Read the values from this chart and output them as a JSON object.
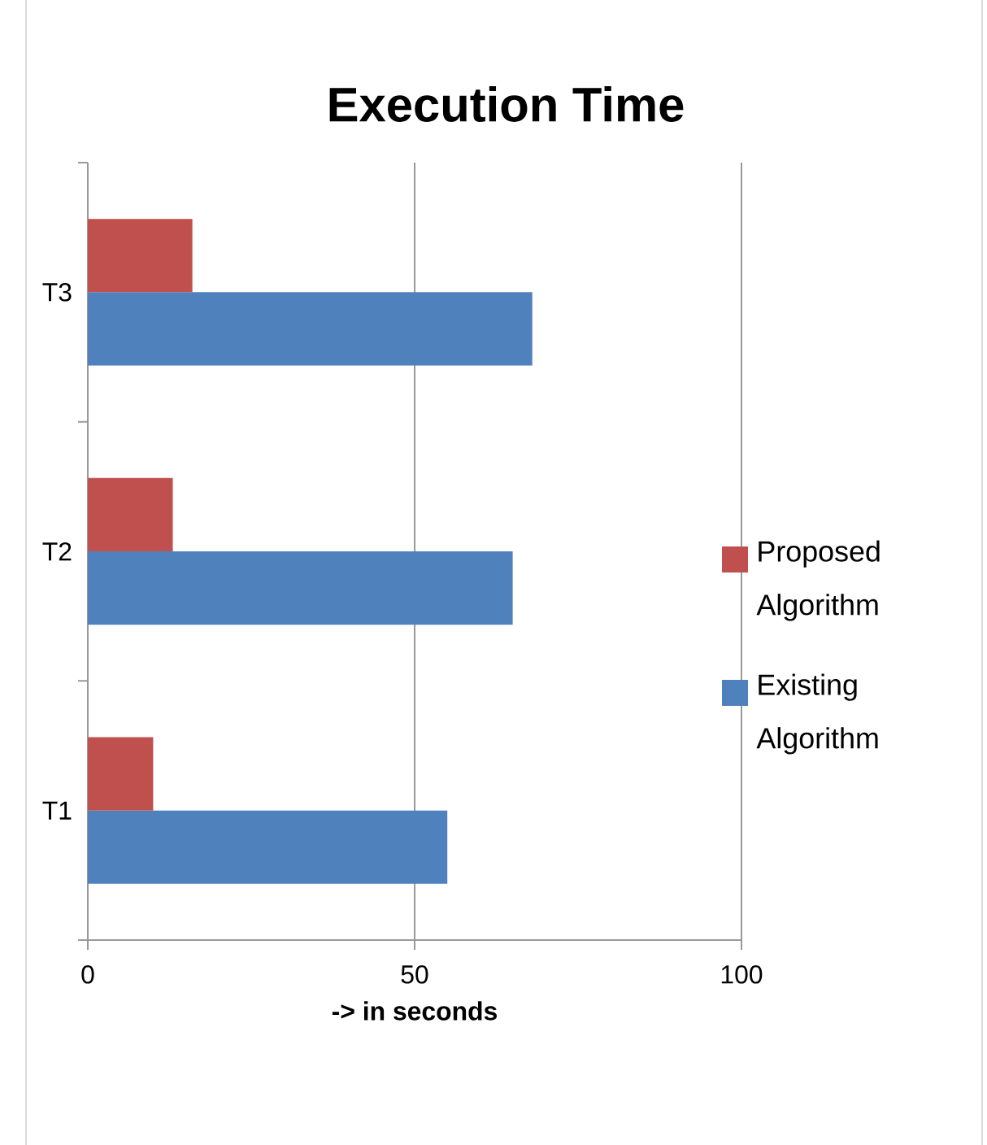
{
  "chart_data": {
    "type": "bar",
    "orientation": "horizontal",
    "title": "Execution Time",
    "xlabel": "-> in seconds",
    "categories": [
      "T3",
      "T2",
      "T1"
    ],
    "series": [
      {
        "name": "Existing Algorithm",
        "color": "#4f81bd",
        "values": [
          68,
          65,
          55
        ]
      },
      {
        "name": "Proposed Algorithm",
        "color": "#c0504d",
        "values": [
          16,
          13,
          10
        ]
      }
    ],
    "xlim": [
      0,
      100
    ],
    "xticks": [
      0,
      50,
      100
    ],
    "grid": "x",
    "legend": "right"
  }
}
